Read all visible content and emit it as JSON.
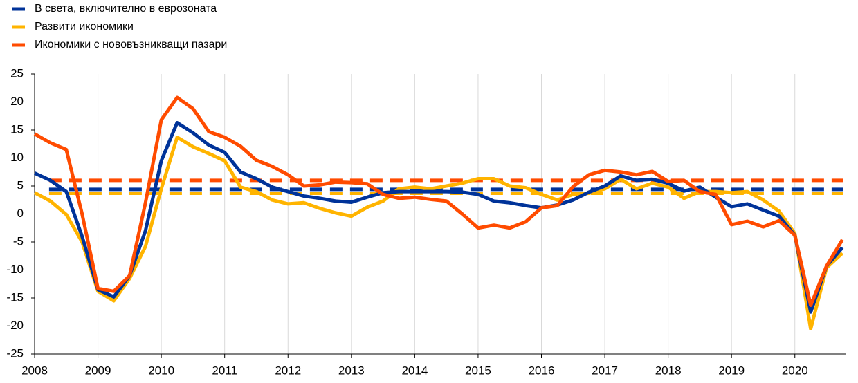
{
  "chart_data": {
    "type": "line",
    "x": [
      2008,
      2008.25,
      2008.5,
      2008.75,
      2009,
      2009.25,
      2009.5,
      2009.75,
      2010,
      2010.25,
      2010.5,
      2010.75,
      2011,
      2011.25,
      2011.5,
      2011.75,
      2012,
      2012.25,
      2012.5,
      2012.75,
      2013,
      2013.25,
      2013.5,
      2013.75,
      2014,
      2014.25,
      2014.5,
      2014.75,
      2015,
      2015.25,
      2015.5,
      2015.75,
      2016,
      2016.25,
      2016.5,
      2016.75,
      2017,
      2017.25,
      2017.5,
      2017.75,
      2018,
      2018.25,
      2018.5,
      2018.75,
      2019,
      2019.25,
      2019.5,
      2019.75,
      2020,
      2020.25,
      2020.5,
      2020.75
    ],
    "series": [
      {
        "name": "В света, включително в еврозоната",
        "color": "#003399",
        "average": 4.4,
        "values": [
          7.3,
          6,
          4,
          -4,
          -13.5,
          -14.8,
          -11,
          -3,
          9.5,
          16.3,
          14.5,
          12.3,
          11,
          7.5,
          6.3,
          4.8,
          4,
          3.2,
          2.8,
          2.3,
          2.1,
          3,
          3.8,
          4,
          4,
          4,
          4,
          3.9,
          3.5,
          2.3,
          2,
          1.5,
          1.1,
          1.6,
          2.5,
          3.9,
          5,
          6.8,
          6,
          6.2,
          5.5,
          4.1,
          4.8,
          3,
          1.3,
          1.8,
          0.7,
          -0.4,
          -3.8,
          -17.5,
          -9.3,
          -6
        ]
      },
      {
        "name": "Развити икономики",
        "color": "#ffb400",
        "average": 3.7,
        "values": [
          3.8,
          2.3,
          -0.1,
          -5,
          -13.8,
          -15.5,
          -11.5,
          -5.8,
          4.5,
          13.7,
          12,
          10.8,
          9.5,
          4.8,
          4,
          2.5,
          1.8,
          2,
          1,
          0.2,
          -0.4,
          1.2,
          2.3,
          4.5,
          4.8,
          4.5,
          5,
          5.5,
          6.3,
          6.3,
          5,
          4.7,
          3.5,
          2.5,
          3.5,
          3.7,
          4.5,
          6.2,
          4.5,
          5.5,
          4.8,
          2.8,
          4,
          4,
          3.8,
          4,
          2.5,
          0.5,
          -3.5,
          -20.5,
          -9.6,
          -7
        ]
      },
      {
        "name": "Икономики с нововъзникващи пазари",
        "color": "#ff4b00",
        "average": 6,
        "values": [
          14.3,
          12.7,
          11.5,
          0,
          -13.3,
          -13.8,
          -11,
          2,
          16.8,
          20.8,
          18.8,
          14.7,
          13.7,
          12.1,
          9.6,
          8.5,
          7,
          5,
          5.2,
          5.7,
          5.6,
          5.4,
          3.5,
          2.8,
          3,
          2.6,
          2.3,
          0,
          -2.5,
          -2,
          -2.5,
          -1.4,
          1.1,
          1.5,
          4.9,
          7,
          7.8,
          7.5,
          7,
          7.6,
          5.8,
          6,
          4,
          3.5,
          -1.9,
          -1.3,
          -2.3,
          -1.2,
          -3.8,
          -16.3,
          -9.3,
          -4.6
        ]
      }
    ],
    "xlim": [
      2008,
      2020.8
    ],
    "xticks": [
      2008,
      2009,
      2010,
      2011,
      2012,
      2013,
      2014,
      2015,
      2016,
      2017,
      2018,
      2019,
      2020
    ],
    "ylim": [
      -25,
      25
    ],
    "yticks": [
      -25,
      -20,
      -15,
      -10,
      -5,
      0,
      5,
      10,
      15,
      20,
      25
    ],
    "grid": "x",
    "legend": "top-left"
  }
}
